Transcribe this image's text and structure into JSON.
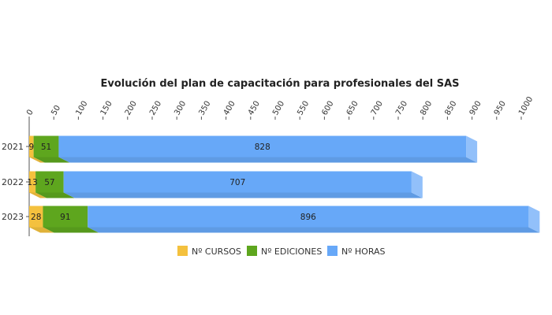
{
  "chart_data": {
    "type": "bar",
    "orientation": "horizontal",
    "stacked": true,
    "style": "3d",
    "title": "Evolución del plan de capacitación para profesionales del SAS",
    "categories": [
      "2021",
      "2022",
      "2023"
    ],
    "series": [
      {
        "name": "Nº CURSOS",
        "values": [
          9,
          13,
          28
        ],
        "color": "#F4C13E"
      },
      {
        "name": "Nº EDICIONES",
        "values": [
          51,
          57,
          91
        ],
        "color": "#5EA61E"
      },
      {
        "name": "Nº HORAS",
        "values": [
          828,
          707,
          896
        ],
        "color": "#67A8F8"
      }
    ],
    "x_ticks": [
      "0",
      "50",
      "100",
      "150",
      "200",
      "250",
      "300",
      "350",
      "400",
      "450",
      "500",
      "550",
      "600",
      "650",
      "700",
      "750",
      "800",
      "850",
      "900",
      "950",
      "1000"
    ],
    "xlim": [
      0,
      1000
    ],
    "grid": false,
    "legend_position": "bottom"
  }
}
